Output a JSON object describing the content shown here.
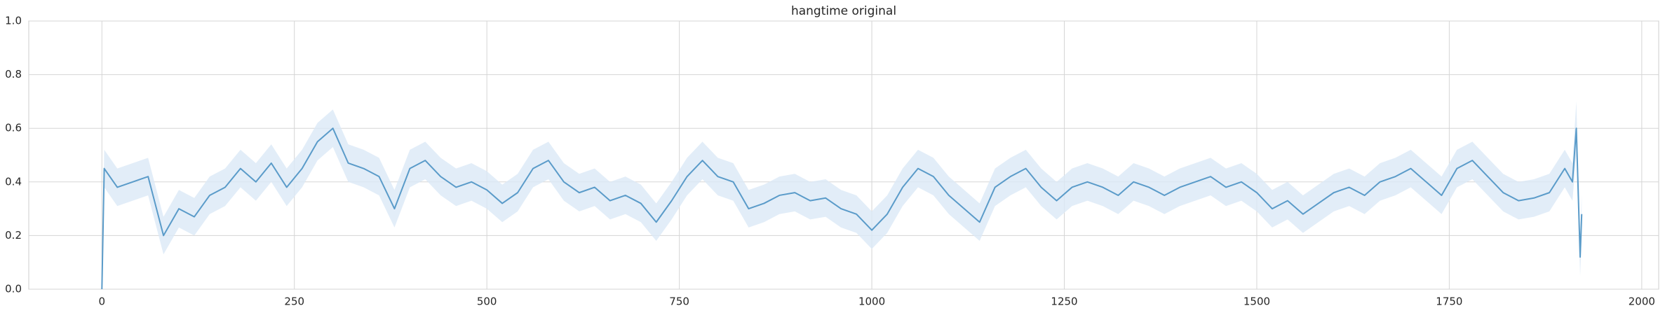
{
  "chart_data": {
    "type": "line",
    "title": "hangtime original",
    "x": [
      0,
      3,
      20,
      40,
      60,
      80,
      100,
      120,
      140,
      160,
      180,
      200,
      220,
      240,
      260,
      280,
      300,
      320,
      340,
      360,
      380,
      400,
      420,
      440,
      460,
      480,
      500,
      520,
      540,
      560,
      580,
      600,
      620,
      640,
      660,
      680,
      700,
      720,
      740,
      760,
      780,
      800,
      820,
      840,
      860,
      880,
      900,
      920,
      940,
      960,
      980,
      1000,
      1020,
      1040,
      1060,
      1080,
      1100,
      1120,
      1140,
      1160,
      1180,
      1200,
      1220,
      1240,
      1260,
      1280,
      1300,
      1320,
      1340,
      1360,
      1380,
      1400,
      1420,
      1440,
      1460,
      1480,
      1500,
      1520,
      1540,
      1560,
      1580,
      1600,
      1620,
      1640,
      1660,
      1680,
      1700,
      1720,
      1740,
      1760,
      1780,
      1800,
      1820,
      1840,
      1860,
      1880,
      1900,
      1910,
      1915,
      1920,
      1922
    ],
    "series": [
      {
        "color": "#5a9bc9",
        "band_color": "#dbe9f6",
        "values": [
          0.0,
          0.45,
          0.38,
          0.4,
          0.42,
          0.2,
          0.3,
          0.27,
          0.35,
          0.38,
          0.45,
          0.4,
          0.47,
          0.38,
          0.45,
          0.55,
          0.6,
          0.47,
          0.45,
          0.42,
          0.3,
          0.45,
          0.48,
          0.42,
          0.38,
          0.4,
          0.37,
          0.32,
          0.36,
          0.45,
          0.48,
          0.4,
          0.36,
          0.38,
          0.33,
          0.35,
          0.32,
          0.25,
          0.33,
          0.42,
          0.48,
          0.42,
          0.4,
          0.3,
          0.32,
          0.35,
          0.36,
          0.33,
          0.34,
          0.3,
          0.28,
          0.22,
          0.28,
          0.38,
          0.45,
          0.42,
          0.35,
          0.3,
          0.25,
          0.38,
          0.42,
          0.45,
          0.38,
          0.33,
          0.38,
          0.4,
          0.38,
          0.35,
          0.4,
          0.38,
          0.35,
          0.38,
          0.4,
          0.42,
          0.38,
          0.4,
          0.36,
          0.3,
          0.33,
          0.28,
          0.32,
          0.36,
          0.38,
          0.35,
          0.4,
          0.42,
          0.45,
          0.4,
          0.35,
          0.45,
          0.48,
          0.42,
          0.36,
          0.33,
          0.34,
          0.36,
          0.45,
          0.4,
          0.6,
          0.12,
          0.28
        ],
        "lower": [
          0.0,
          0.38,
          0.31,
          0.33,
          0.35,
          0.13,
          0.23,
          0.2,
          0.28,
          0.31,
          0.38,
          0.33,
          0.4,
          0.31,
          0.38,
          0.48,
          0.53,
          0.4,
          0.38,
          0.35,
          0.23,
          0.38,
          0.41,
          0.35,
          0.31,
          0.33,
          0.3,
          0.25,
          0.29,
          0.38,
          0.41,
          0.33,
          0.29,
          0.31,
          0.26,
          0.28,
          0.25,
          0.18,
          0.26,
          0.35,
          0.41,
          0.35,
          0.33,
          0.23,
          0.25,
          0.28,
          0.29,
          0.26,
          0.27,
          0.23,
          0.21,
          0.15,
          0.21,
          0.31,
          0.38,
          0.35,
          0.28,
          0.23,
          0.18,
          0.31,
          0.35,
          0.38,
          0.31,
          0.26,
          0.31,
          0.33,
          0.31,
          0.28,
          0.33,
          0.31,
          0.28,
          0.31,
          0.33,
          0.35,
          0.31,
          0.33,
          0.29,
          0.23,
          0.26,
          0.21,
          0.25,
          0.29,
          0.31,
          0.28,
          0.33,
          0.35,
          0.38,
          0.33,
          0.28,
          0.38,
          0.41,
          0.35,
          0.29,
          0.26,
          0.27,
          0.29,
          0.38,
          0.33,
          0.5,
          0.05,
          0.2
        ],
        "upper": [
          0.05,
          0.52,
          0.45,
          0.47,
          0.49,
          0.27,
          0.37,
          0.34,
          0.42,
          0.45,
          0.52,
          0.47,
          0.54,
          0.45,
          0.52,
          0.62,
          0.67,
          0.54,
          0.52,
          0.49,
          0.37,
          0.52,
          0.55,
          0.49,
          0.45,
          0.47,
          0.44,
          0.39,
          0.43,
          0.52,
          0.55,
          0.47,
          0.43,
          0.45,
          0.4,
          0.42,
          0.39,
          0.32,
          0.4,
          0.49,
          0.55,
          0.49,
          0.47,
          0.37,
          0.39,
          0.42,
          0.43,
          0.4,
          0.41,
          0.37,
          0.35,
          0.29,
          0.35,
          0.45,
          0.52,
          0.49,
          0.42,
          0.37,
          0.32,
          0.45,
          0.49,
          0.52,
          0.45,
          0.4,
          0.45,
          0.47,
          0.45,
          0.42,
          0.47,
          0.45,
          0.42,
          0.45,
          0.47,
          0.49,
          0.45,
          0.47,
          0.43,
          0.37,
          0.4,
          0.35,
          0.39,
          0.43,
          0.45,
          0.42,
          0.47,
          0.49,
          0.52,
          0.47,
          0.42,
          0.52,
          0.55,
          0.49,
          0.43,
          0.4,
          0.41,
          0.43,
          0.52,
          0.47,
          0.7,
          0.19,
          0.35
        ]
      }
    ],
    "xlim": [
      -95,
      2022
    ],
    "ylim": [
      0,
      1
    ],
    "xticks": [
      0,
      250,
      500,
      750,
      1000,
      1250,
      1500,
      1750,
      2000
    ],
    "yticks": [
      {
        "value": 0,
        "label": "0.0"
      },
      {
        "value": 0.2,
        "label": "0.2"
      },
      {
        "value": 0.4,
        "label": "0.4"
      },
      {
        "value": 0.6,
        "label": "0.6"
      },
      {
        "value": 0.8,
        "label": "0.8"
      },
      {
        "value": 1,
        "label": "1.0"
      }
    ],
    "grid": true
  }
}
